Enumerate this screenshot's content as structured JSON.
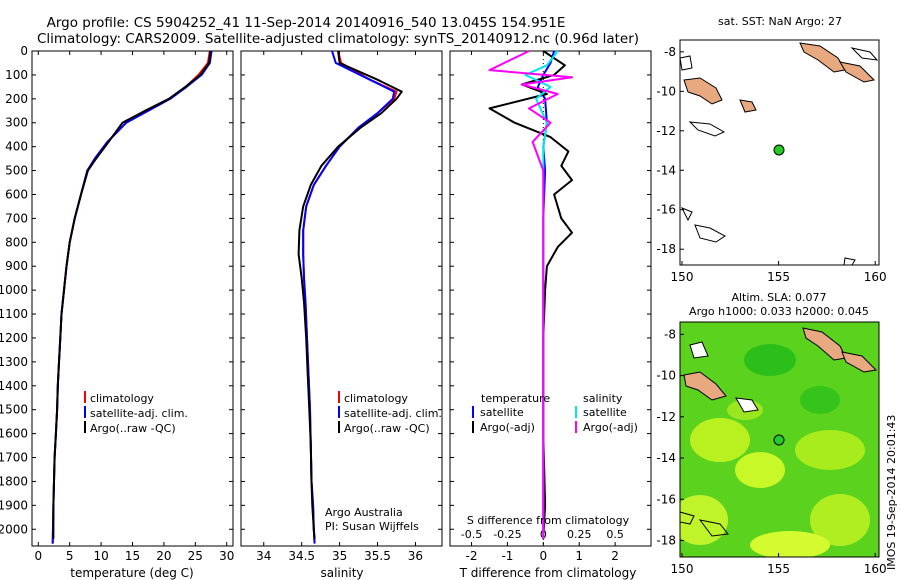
{
  "header": {
    "title_line1": "Argo profile: CS 5904252_41 11-Sep-2014 20140916_540 13.045S 154.951E",
    "title_line2": "Climatology: CARS2009. Satellite-adjusted climatology: synTS_20140912.nc (0.96d later)"
  },
  "colors": {
    "climatology": "#ff0000",
    "satellite": "#0000ff",
    "argo": "#000000",
    "sal_satellite": "#00e5ee",
    "sal_argo": "#ff00ff",
    "land": "#e8a880",
    "sla_field": "#5ad21e",
    "marker": "#22cc22"
  },
  "chart_data": [
    {
      "id": "temperature",
      "type": "line",
      "xlabel": "temperature (deg C)",
      "ylabel": "",
      "xlim": [
        -1,
        31
      ],
      "ylim": [
        2070,
        0
      ],
      "xticks": [
        0,
        5,
        10,
        15,
        20,
        25,
        30
      ],
      "yticks": [
        0,
        100,
        200,
        300,
        400,
        500,
        600,
        700,
        800,
        900,
        1000,
        1100,
        1200,
        1300,
        1400,
        1500,
        1600,
        1700,
        1800,
        1900,
        2000
      ],
      "legend": {
        "position": "lower-center",
        "entries": [
          "climatology",
          "satellite-adj. clim.",
          "Argo(..raw -QC)"
        ]
      },
      "series": [
        {
          "name": "climatology",
          "color": "#ff0000",
          "x": [
            27.3,
            27.0,
            25.5,
            23.5,
            21.0,
            17.5,
            14.0,
            11.0,
            9.0,
            7.8,
            6.8,
            5.8,
            5.0,
            4.5,
            4.1,
            3.7,
            3.5,
            3.3,
            3.1,
            3.0,
            2.8,
            2.6,
            2.5,
            2.4,
            2.3
          ],
          "y": [
            0,
            50,
            100,
            150,
            200,
            250,
            300,
            380,
            450,
            500,
            600,
            700,
            800,
            900,
            1000,
            1100,
            1200,
            1300,
            1400,
            1500,
            1600,
            1700,
            1800,
            1900,
            2060
          ]
        },
        {
          "name": "satellite-adj. clim.",
          "color": "#0000ff",
          "x": [
            27.6,
            27.3,
            26.0,
            23.6,
            21.0,
            17.5,
            14.0,
            11.0,
            9.0,
            7.8,
            6.8,
            5.8,
            5.0,
            4.5,
            4.1,
            3.7,
            3.5,
            3.3,
            3.1,
            3.0,
            2.8,
            2.6,
            2.5,
            2.4,
            2.3
          ],
          "y": [
            0,
            50,
            100,
            150,
            200,
            250,
            300,
            380,
            450,
            500,
            600,
            700,
            800,
            900,
            1000,
            1100,
            1200,
            1300,
            1400,
            1500,
            1600,
            1700,
            1800,
            1900,
            2060
          ]
        },
        {
          "name": "Argo(..raw -QC)",
          "color": "#000000",
          "x": [
            27.4,
            27.2,
            25.8,
            23.4,
            20.8,
            17.0,
            13.4,
            11.2,
            9.2,
            7.9,
            6.8,
            5.8,
            5.0,
            4.5,
            4.1,
            3.7,
            3.5,
            3.3,
            3.1,
            3.0,
            2.8,
            2.6,
            2.5,
            2.4,
            2.4
          ],
          "y": [
            0,
            50,
            100,
            150,
            200,
            250,
            300,
            380,
            450,
            500,
            600,
            700,
            800,
            900,
            1000,
            1100,
            1200,
            1300,
            1400,
            1500,
            1600,
            1700,
            1800,
            1900,
            2040
          ]
        }
      ]
    },
    {
      "id": "salinity",
      "type": "line",
      "xlabel": "salinity",
      "xlim": [
        33.7,
        36.35
      ],
      "ylim": [
        2070,
        0
      ],
      "xticks": [
        34,
        34.5,
        35,
        35.5,
        36
      ],
      "xticklabels": [
        "34",
        "34.5",
        "35",
        "35.5",
        "36"
      ],
      "legend": {
        "position": "lower-right",
        "entries": [
          "climatology",
          "satellite-adj. clim.",
          "Argo(..raw -QC)"
        ]
      },
      "annotation": [
        "Argo Australia",
        "PI: Susan Wijffels"
      ],
      "series": [
        {
          "name": "climatology",
          "color": "#ff0000",
          "x": [
            34.98,
            35.02,
            35.4,
            35.75,
            35.72,
            35.5,
            35.25,
            35.0,
            34.82,
            34.66,
            34.56,
            34.52,
            34.52,
            34.53,
            34.55,
            34.57,
            34.59,
            34.61,
            34.62,
            34.63,
            34.65,
            34.66,
            34.67
          ],
          "y": [
            0,
            50,
            120,
            170,
            200,
            260,
            320,
            400,
            480,
            560,
            650,
            750,
            850,
            950,
            1050,
            1200,
            1350,
            1500,
            1650,
            1800,
            1900,
            2000,
            2060
          ]
        },
        {
          "name": "satellite-adj. clim.",
          "color": "#0000ff",
          "x": [
            34.9,
            34.95,
            35.4,
            35.72,
            35.7,
            35.5,
            35.25,
            35.0,
            34.82,
            34.66,
            34.56,
            34.52,
            34.52,
            34.53,
            34.55,
            34.57,
            34.59,
            34.61,
            34.62,
            34.63,
            34.65,
            34.66,
            34.67
          ],
          "y": [
            0,
            50,
            120,
            170,
            200,
            260,
            320,
            400,
            480,
            560,
            650,
            750,
            850,
            950,
            1050,
            1200,
            1350,
            1500,
            1650,
            1800,
            1900,
            2000,
            2060
          ]
        },
        {
          "name": "Argo(..raw -QC)",
          "color": "#000000",
          "x": [
            34.98,
            35.0,
            35.5,
            35.82,
            35.75,
            35.55,
            35.28,
            34.98,
            34.76,
            34.62,
            34.52,
            34.47,
            34.46,
            34.5,
            34.53,
            34.56,
            34.58,
            34.6,
            34.62,
            34.63,
            34.64,
            34.66,
            34.67
          ],
          "y": [
            0,
            50,
            120,
            170,
            200,
            260,
            320,
            400,
            480,
            560,
            650,
            750,
            850,
            950,
            1050,
            1200,
            1350,
            1500,
            1650,
            1800,
            1900,
            2000,
            2040
          ]
        }
      ]
    },
    {
      "id": "difference",
      "type": "line",
      "xlabel": "T difference from climatology",
      "xlabel_top": "S difference from climatology",
      "xlim": [
        -2.6,
        3.0
      ],
      "ylim": [
        2070,
        0
      ],
      "xticks": [
        -2,
        -1,
        0,
        1,
        2
      ],
      "s_ticklabels": [
        "-0.5",
        "-0.25",
        "0",
        "0.25",
        "0.5"
      ],
      "s_tick_positions": [
        -2,
        -1,
        0,
        1,
        2
      ],
      "legend": {
        "position": "lower",
        "groups": [
          "temperature",
          "salinity"
        ],
        "entries": [
          "satellite",
          "Argo(-adj)",
          "satellite",
          "Argo(-adj)"
        ]
      },
      "series": [
        {
          "name": "T satellite",
          "color": "#0000ff",
          "x": [
            0.3,
            0.2,
            0.0,
            -0.15,
            0.05,
            0.1,
            0.0,
            0.05,
            0.0,
            0.0,
            0.0,
            0.0,
            0.0,
            0.0
          ],
          "y": [
            0,
            50,
            100,
            150,
            200,
            300,
            400,
            500,
            700,
            900,
            1200,
            1500,
            1800,
            2040
          ]
        },
        {
          "name": "T Argo(-adj)",
          "color": "#000000",
          "x": [
            0.0,
            0.6,
            0.3,
            -0.6,
            0.1,
            -1.5,
            -0.8,
            0.2,
            0.7,
            0.5,
            0.8,
            0.3,
            0.5,
            0.8,
            0.4,
            0.1,
            0.05,
            0.0,
            0.0,
            0.0,
            0.05,
            0.0
          ],
          "y": [
            0,
            60,
            100,
            140,
            180,
            240,
            300,
            360,
            420,
            480,
            540,
            600,
            700,
            760,
            820,
            900,
            1000,
            1200,
            1400,
            1600,
            1900,
            2040
          ]
        },
        {
          "name": "S satellite",
          "color": "#00e5ee",
          "x": [
            0.4,
            0.1,
            -0.5,
            0.2,
            -0.2,
            0.1,
            0.0,
            0.0,
            0.0,
            0.0,
            0.0
          ],
          "y": [
            0,
            60,
            100,
            150,
            200,
            300,
            400,
            600,
            900,
            1400,
            2040
          ]
        },
        {
          "name": "S Argo(-adj)",
          "color": "#ff00ff",
          "x": [
            -0.4,
            -1.5,
            0.8,
            -0.6,
            0.4,
            -0.4,
            0.2,
            -0.3,
            0.0,
            0.0,
            0.0,
            0.0
          ],
          "y": [
            0,
            80,
            110,
            140,
            180,
            240,
            300,
            380,
            500,
            800,
            1200,
            2040
          ]
        }
      ]
    }
  ],
  "map_sst": {
    "title": "sat. SST: NaN Argo: 27",
    "xticks": [
      "150",
      "155",
      "160"
    ],
    "yticks": [
      "-8",
      "-10",
      "-12",
      "-14",
      "-16",
      "-18"
    ],
    "profile_lon": 154.951,
    "profile_lat": -13.045
  },
  "map_sla": {
    "title_line1": "Altim. SLA: 0.077",
    "title_line2": "Argo h1000: 0.033 h2000: 0.045",
    "xticks": [
      "150",
      "155",
      "160"
    ],
    "yticks": [
      "-8",
      "-10",
      "-12",
      "-14",
      "-16",
      "-18"
    ],
    "profile_lon": 154.951,
    "profile_lat": -13.045
  },
  "footer": {
    "stamp": "IMOS 19-Sep-2014 20:01:43"
  }
}
